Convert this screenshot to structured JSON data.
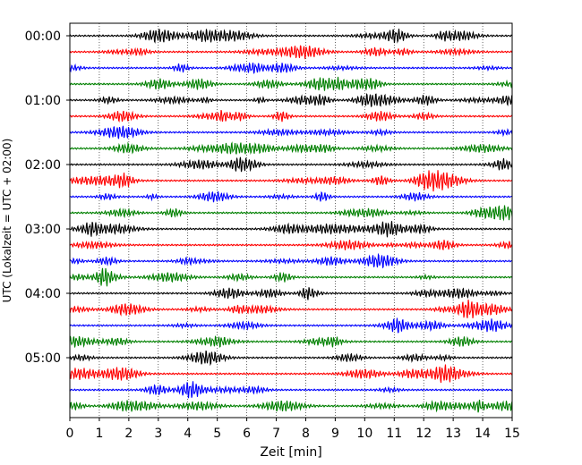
{
  "chart_data": {
    "type": "line",
    "title": "",
    "xlabel": "Zeit  [min]",
    "ylabel": "UTC (Lokalzeit = UTC + 02:00)",
    "xlim": [
      0,
      15
    ],
    "x_ticks": [
      "0",
      "1",
      "2",
      "3",
      "4",
      "5",
      "6",
      "7",
      "8",
      "9",
      "10",
      "11",
      "12",
      "13",
      "14",
      "15"
    ],
    "y_ticks": [
      "00:00",
      "01:00",
      "02:00",
      "03:00",
      "04:00",
      "05:00"
    ],
    "grid": "vertical dotted lines at each minute",
    "legend": "none",
    "trace_interval_minutes": 15,
    "trace_count": 24,
    "series_colors": [
      "#000000",
      "#ff0000",
      "#0000ff",
      "#008000"
    ]
  }
}
